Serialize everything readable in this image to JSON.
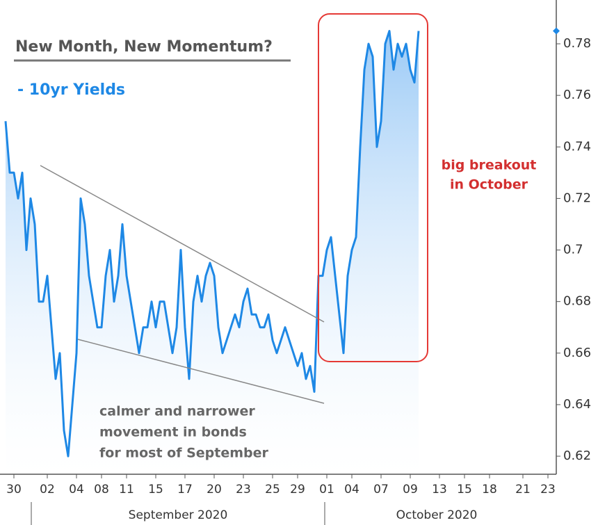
{
  "chart_data": {
    "type": "line",
    "title": "New Month, New Momentum?",
    "subtitle": "- 10yr Yields",
    "annotations": [
      "big breakout",
      "in October",
      "calmer and narrower",
      "movement in bonds",
      "for most of September"
    ],
    "month_labels": [
      "September 2020",
      "October 2020"
    ],
    "series": [
      {
        "name": "10yr Yields",
        "color": "#1e88e5",
        "values": [
          0.75,
          0.73,
          0.73,
          0.72,
          0.73,
          0.7,
          0.72,
          0.71,
          0.68,
          0.68,
          0.69,
          0.67,
          0.65,
          0.66,
          0.63,
          0.62,
          0.64,
          0.66,
          0.72,
          0.71,
          0.69,
          0.68,
          0.67,
          0.67,
          0.69,
          0.7,
          0.68,
          0.69,
          0.71,
          0.69,
          0.68,
          0.67,
          0.66,
          0.67,
          0.67,
          0.68,
          0.67,
          0.68,
          0.68,
          0.67,
          0.66,
          0.67,
          0.7,
          0.67,
          0.65,
          0.68,
          0.69,
          0.68,
          0.69,
          0.695,
          0.69,
          0.67,
          0.66,
          0.665,
          0.67,
          0.675,
          0.67,
          0.68,
          0.685,
          0.675,
          0.675,
          0.67,
          0.67,
          0.675,
          0.665,
          0.66,
          0.665,
          0.67,
          0.665,
          0.66,
          0.655,
          0.66,
          0.65,
          0.655,
          0.645,
          0.69,
          0.69,
          0.7,
          0.705,
          0.69,
          0.675,
          0.66,
          0.69,
          0.7,
          0.705,
          0.74,
          0.77,
          0.78,
          0.775,
          0.74,
          0.75,
          0.78,
          0.785,
          0.77,
          0.78,
          0.775,
          0.78,
          0.77,
          0.765,
          0.785
        ]
      }
    ],
    "xlim": [
      0,
      132
    ],
    "xticks": [
      {
        "value": 2,
        "label": "30"
      },
      {
        "value": 10,
        "label": "02"
      },
      {
        "value": 17,
        "label": "04"
      },
      {
        "value": 23,
        "label": "08"
      },
      {
        "value": 29,
        "label": "11"
      },
      {
        "value": 36,
        "label": "15"
      },
      {
        "value": 43,
        "label": "17"
      },
      {
        "value": 50,
        "label": "20"
      },
      {
        "value": 57,
        "label": "23"
      },
      {
        "value": 64,
        "label": "25"
      },
      {
        "value": 70,
        "label": "29"
      },
      {
        "value": 77,
        "label": "01"
      },
      {
        "value": 83,
        "label": "04"
      },
      {
        "value": 90,
        "label": "07"
      },
      {
        "value": 97,
        "label": "09"
      },
      {
        "value": 104,
        "label": "13"
      },
      {
        "value": 110,
        "label": "15"
      },
      {
        "value": 116,
        "label": "18"
      },
      {
        "value": 124,
        "label": "21"
      },
      {
        "value": 130,
        "label": "23"
      }
    ],
    "ylim": [
      0.613,
      0.797
    ],
    "yticks": [
      0.62,
      0.64,
      0.66,
      0.68,
      0.7,
      0.72,
      0.74,
      0.76,
      0.78
    ]
  }
}
